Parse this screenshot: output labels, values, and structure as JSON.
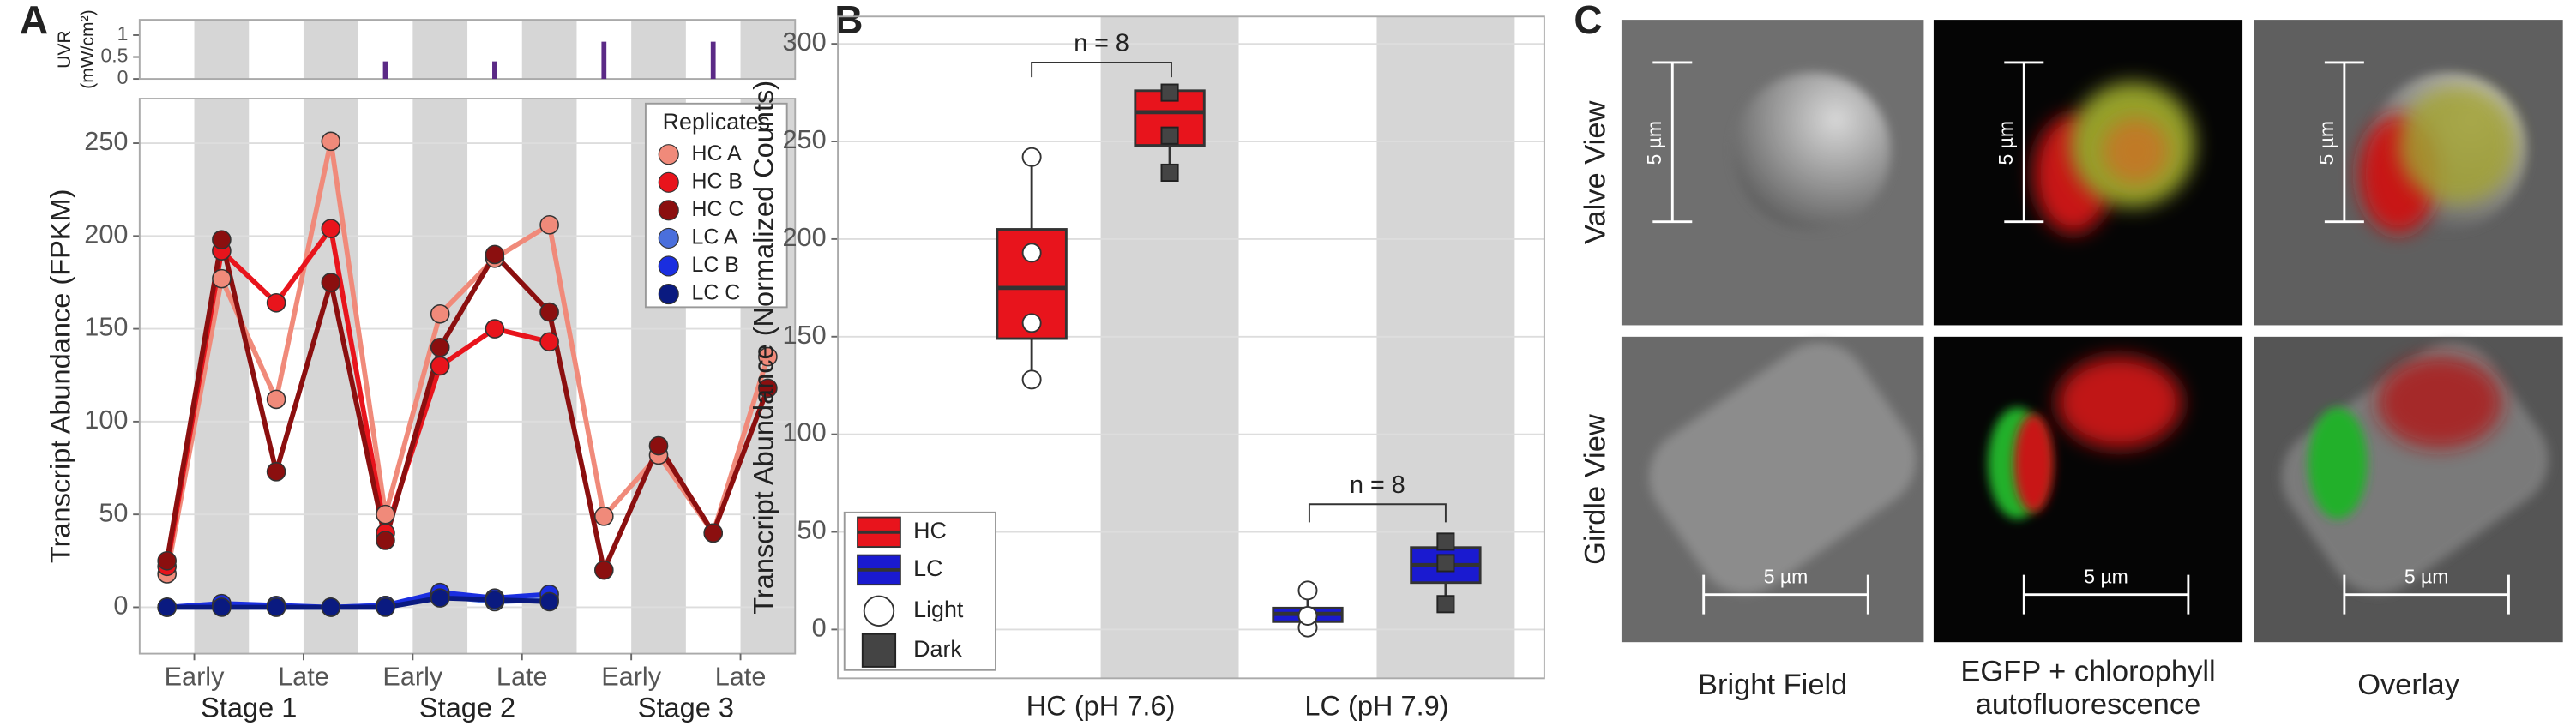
{
  "panel_labels": [
    "A",
    "B",
    "C"
  ],
  "chart_data": [
    {
      "type": "bar",
      "ylabel": [
        "UVR",
        "(mW/cm²)"
      ],
      "x": [
        5,
        7,
        9,
        11
      ],
      "values": [
        0.4,
        0.4,
        0.85,
        0.85
      ],
      "color": "#5b2a86",
      "xlim": [
        0.5,
        12.5
      ],
      "ylim": [
        0,
        1.35
      ],
      "yticks": [
        0,
        0.5,
        1
      ]
    },
    {
      "type": "line",
      "ylabel": "Transcript Abundance (FPKM)",
      "legend_title": "Replicates",
      "legend": "upper right",
      "grid": true,
      "x": [
        1,
        2,
        3,
        4,
        5,
        6,
        7,
        8,
        9,
        10,
        11,
        12
      ],
      "xlim": [
        0.5,
        12.5
      ],
      "xticks": [
        {
          "value": 1.5,
          "label": "Early"
        },
        {
          "value": 3.5,
          "label": "Late"
        },
        {
          "value": 5.5,
          "label": "Early"
        },
        {
          "value": 7.5,
          "label": "Late"
        },
        {
          "value": 9.5,
          "label": "Early"
        },
        {
          "value": 11.5,
          "label": "Late"
        }
      ],
      "stage_labels": [
        "Stage 1",
        "Stage 2",
        "Stage 3"
      ],
      "ylim": [
        -25,
        274
      ],
      "yticks": [
        0,
        50,
        100,
        150,
        200,
        250
      ],
      "series": [
        {
          "name": "HC A",
          "color": "#f08a7a",
          "values": [
            18,
            177,
            112,
            251,
            50,
            158,
            188,
            206,
            49,
            82,
            40,
            135
          ]
        },
        {
          "name": "HC B",
          "color": "#e8141c",
          "values": [
            22,
            192,
            164,
            204,
            40,
            130,
            150,
            143,
            null,
            null,
            null,
            null
          ]
        },
        {
          "name": "HC C",
          "color": "#8b0f0f",
          "values": [
            25,
            198,
            73,
            175,
            36,
            140,
            190,
            159,
            20,
            87,
            40,
            118
          ]
        },
        {
          "name": "LC A",
          "color": "#4a6fdc",
          "values": [
            0,
            1,
            0,
            0,
            1,
            6,
            3,
            4,
            null,
            null,
            null,
            null
          ]
        },
        {
          "name": "LC B",
          "color": "#1a2ee0",
          "values": [
            0,
            2,
            1,
            0,
            1,
            8,
            5,
            7,
            null,
            null,
            null,
            null
          ]
        },
        {
          "name": "LC C",
          "color": "#0a1a80",
          "values": [
            0,
            0,
            0,
            0,
            0,
            5,
            4,
            3,
            null,
            null,
            null,
            null
          ]
        }
      ]
    },
    {
      "type": "box",
      "ylabel": "Transcript Abundance (Normalized Counts)",
      "grid": true,
      "legend": "lower left",
      "categories": [
        "HC (pH 7.6)",
        "LC (pH 7.9)"
      ],
      "conditions": [
        "Light",
        "Dark"
      ],
      "ylim": [
        -25,
        314
      ],
      "yticks": [
        0,
        50,
        100,
        150,
        200,
        250,
        300
      ],
      "annotations": [
        "n = 8",
        "n = 8"
      ],
      "series": [
        {
          "name": "HC",
          "color": "#e8141c",
          "boxes": [
            {
              "min": 128,
              "q1": 149,
              "median": 175,
              "q3": 205,
              "max": 242,
              "points": [
                128,
                157,
                193,
                242
              ]
            },
            {
              "min": 234,
              "q1": 248,
              "median": 265,
              "q3": 276,
              "max": 276,
              "points": [
                234,
                253,
                275
              ]
            }
          ]
        },
        {
          "name": "LC",
          "color": "#1a1ad0",
          "boxes": [
            {
              "min": 1,
              "q1": 4,
              "median": 8,
              "q3": 11,
              "max": 20,
              "points": [
                1,
                7,
                20
              ]
            },
            {
              "min": 13,
              "q1": 24,
              "median": 33,
              "q3": 42,
              "max": 46,
              "points": [
                13,
                34,
                45
              ]
            }
          ]
        }
      ]
    }
  ],
  "panel_c": {
    "row_labels": [
      "Valve View",
      "Girdle View"
    ],
    "columns": [
      {
        "lines": [
          "Bright Field"
        ]
      },
      {
        "lines": [
          "EGFP + chlorophyll",
          "autofluorescence"
        ]
      },
      {
        "lines": [
          "Overlay"
        ]
      }
    ],
    "scale_labels": [
      "5 µm",
      "5 µm",
      "5 µm",
      "5 µm",
      "5 µm",
      "5 µm"
    ]
  }
}
